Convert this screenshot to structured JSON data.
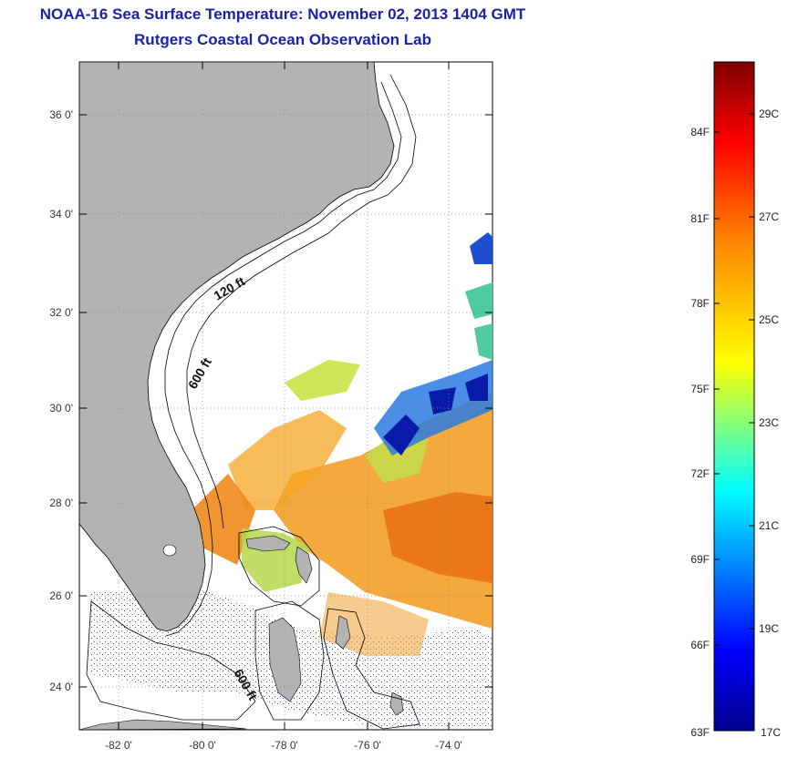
{
  "title": {
    "line1": "NOAA-16 Sea Surface Temperature:  November 02, 2013 1404 GMT",
    "line2": "Rutgers Coastal Ocean Observation Lab"
  },
  "map": {
    "lat_ticks": [
      "36 0'",
      "34 0'",
      "32 0'",
      "30 0'",
      "28 0'",
      "26 0'",
      "24 0'"
    ],
    "lon_ticks": [
      "-82 0'",
      "-80 0'",
      "-78 0'",
      "-76 0'",
      "-74 0'"
    ],
    "contours": [
      "120 ft",
      "600 ft",
      "600 ft"
    ],
    "land_color": "#b3b3b3"
  },
  "colorbar": {
    "fahrenheit": [
      "84F",
      "81F",
      "78F",
      "75F",
      "72F",
      "69F",
      "66F",
      "63F"
    ],
    "celsius": [
      "29C",
      "27C",
      "25C",
      "23C",
      "21C",
      "19C",
      "17C"
    ],
    "colors": [
      "#00008f",
      "#0000ff",
      "#00ffff",
      "#ffff00",
      "#ff7f00",
      "#ff0000",
      "#7f0000"
    ]
  }
}
